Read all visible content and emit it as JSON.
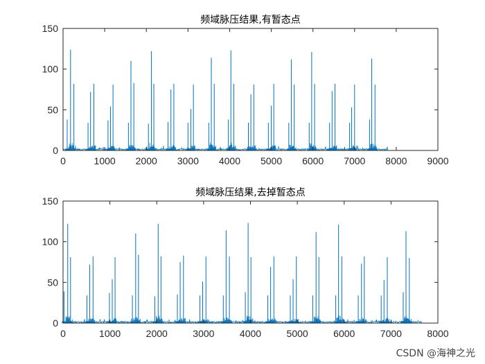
{
  "watermark": "CSDN @海神之光",
  "chart_data": [
    {
      "type": "line",
      "title": "频域脉压结果,有暂态点",
      "xlim": [
        0,
        9000
      ],
      "ylim": [
        0,
        150
      ],
      "xticks": [
        0,
        1000,
        2000,
        3000,
        4000,
        5000,
        6000,
        7000,
        8000,
        9000
      ],
      "yticks": [
        0,
        50,
        100,
        150
      ],
      "line_color": "#0072BD",
      "signal_length": 7800,
      "noise_floor": 2,
      "peaks": [
        {
          "x": 100,
          "y": 38
        },
        {
          "x": 180,
          "y": 124
        },
        {
          "x": 260,
          "y": 82
        },
        {
          "x": 600,
          "y": 34
        },
        {
          "x": 660,
          "y": 72
        },
        {
          "x": 740,
          "y": 82
        },
        {
          "x": 1080,
          "y": 37
        },
        {
          "x": 1140,
          "y": 54
        },
        {
          "x": 1200,
          "y": 81
        },
        {
          "x": 1570,
          "y": 34
        },
        {
          "x": 1630,
          "y": 110
        },
        {
          "x": 1700,
          "y": 83
        },
        {
          "x": 2050,
          "y": 33
        },
        {
          "x": 2120,
          "y": 122
        },
        {
          "x": 2180,
          "y": 82
        },
        {
          "x": 2520,
          "y": 35
        },
        {
          "x": 2590,
          "y": 75
        },
        {
          "x": 2660,
          "y": 82
        },
        {
          "x": 3000,
          "y": 34
        },
        {
          "x": 3070,
          "y": 51
        },
        {
          "x": 3130,
          "y": 81
        },
        {
          "x": 3500,
          "y": 34
        },
        {
          "x": 3560,
          "y": 114
        },
        {
          "x": 3630,
          "y": 82
        },
        {
          "x": 3970,
          "y": 38
        },
        {
          "x": 4030,
          "y": 123
        },
        {
          "x": 4100,
          "y": 82
        },
        {
          "x": 4450,
          "y": 34
        },
        {
          "x": 4510,
          "y": 69
        },
        {
          "x": 4580,
          "y": 81
        },
        {
          "x": 4930,
          "y": 34
        },
        {
          "x": 5000,
          "y": 55
        },
        {
          "x": 5060,
          "y": 82
        },
        {
          "x": 5420,
          "y": 34
        },
        {
          "x": 5480,
          "y": 112
        },
        {
          "x": 5550,
          "y": 81
        },
        {
          "x": 5910,
          "y": 34
        },
        {
          "x": 5970,
          "y": 121
        },
        {
          "x": 6040,
          "y": 82
        },
        {
          "x": 6400,
          "y": 34
        },
        {
          "x": 6460,
          "y": 73
        },
        {
          "x": 6530,
          "y": 82
        },
        {
          "x": 6880,
          "y": 34
        },
        {
          "x": 6930,
          "y": 53
        },
        {
          "x": 7000,
          "y": 81
        },
        {
          "x": 7360,
          "y": 38
        },
        {
          "x": 7410,
          "y": 113
        },
        {
          "x": 7490,
          "y": 81
        }
      ]
    },
    {
      "type": "line",
      "title": "频域脉压结果,去掉暂态点",
      "xlim": [
        0,
        8000
      ],
      "ylim": [
        0,
        150
      ],
      "xticks": [
        0,
        1000,
        2000,
        3000,
        4000,
        5000,
        6000,
        7000,
        8000
      ],
      "yticks": [
        0,
        50,
        100,
        150
      ],
      "line_color": "#0072BD",
      "signal_length": 7650,
      "noise_floor": 2,
      "peaks": [
        {
          "x": 20,
          "y": 39
        },
        {
          "x": 100,
          "y": 122
        },
        {
          "x": 160,
          "y": 81
        },
        {
          "x": 510,
          "y": 34
        },
        {
          "x": 570,
          "y": 72
        },
        {
          "x": 640,
          "y": 82
        },
        {
          "x": 990,
          "y": 37
        },
        {
          "x": 1050,
          "y": 54
        },
        {
          "x": 1110,
          "y": 81
        },
        {
          "x": 1480,
          "y": 34
        },
        {
          "x": 1550,
          "y": 110
        },
        {
          "x": 1610,
          "y": 84
        },
        {
          "x": 1960,
          "y": 33
        },
        {
          "x": 2030,
          "y": 122
        },
        {
          "x": 2090,
          "y": 82
        },
        {
          "x": 2440,
          "y": 35
        },
        {
          "x": 2500,
          "y": 75
        },
        {
          "x": 2570,
          "y": 83
        },
        {
          "x": 2920,
          "y": 34
        },
        {
          "x": 2980,
          "y": 51
        },
        {
          "x": 3050,
          "y": 82
        },
        {
          "x": 3420,
          "y": 34
        },
        {
          "x": 3480,
          "y": 114
        },
        {
          "x": 3550,
          "y": 82
        },
        {
          "x": 3890,
          "y": 38
        },
        {
          "x": 3950,
          "y": 123
        },
        {
          "x": 4010,
          "y": 81
        },
        {
          "x": 4370,
          "y": 34
        },
        {
          "x": 4430,
          "y": 69
        },
        {
          "x": 4500,
          "y": 82
        },
        {
          "x": 4850,
          "y": 34
        },
        {
          "x": 4910,
          "y": 54
        },
        {
          "x": 4980,
          "y": 82
        },
        {
          "x": 5330,
          "y": 34
        },
        {
          "x": 5400,
          "y": 112
        },
        {
          "x": 5460,
          "y": 81
        },
        {
          "x": 5820,
          "y": 34
        },
        {
          "x": 5880,
          "y": 121
        },
        {
          "x": 5950,
          "y": 82
        },
        {
          "x": 6300,
          "y": 34
        },
        {
          "x": 6370,
          "y": 73
        },
        {
          "x": 6430,
          "y": 82
        },
        {
          "x": 6790,
          "y": 34
        },
        {
          "x": 6850,
          "y": 53
        },
        {
          "x": 6920,
          "y": 81
        },
        {
          "x": 7260,
          "y": 38
        },
        {
          "x": 7320,
          "y": 113
        },
        {
          "x": 7390,
          "y": 80
        }
      ]
    }
  ]
}
